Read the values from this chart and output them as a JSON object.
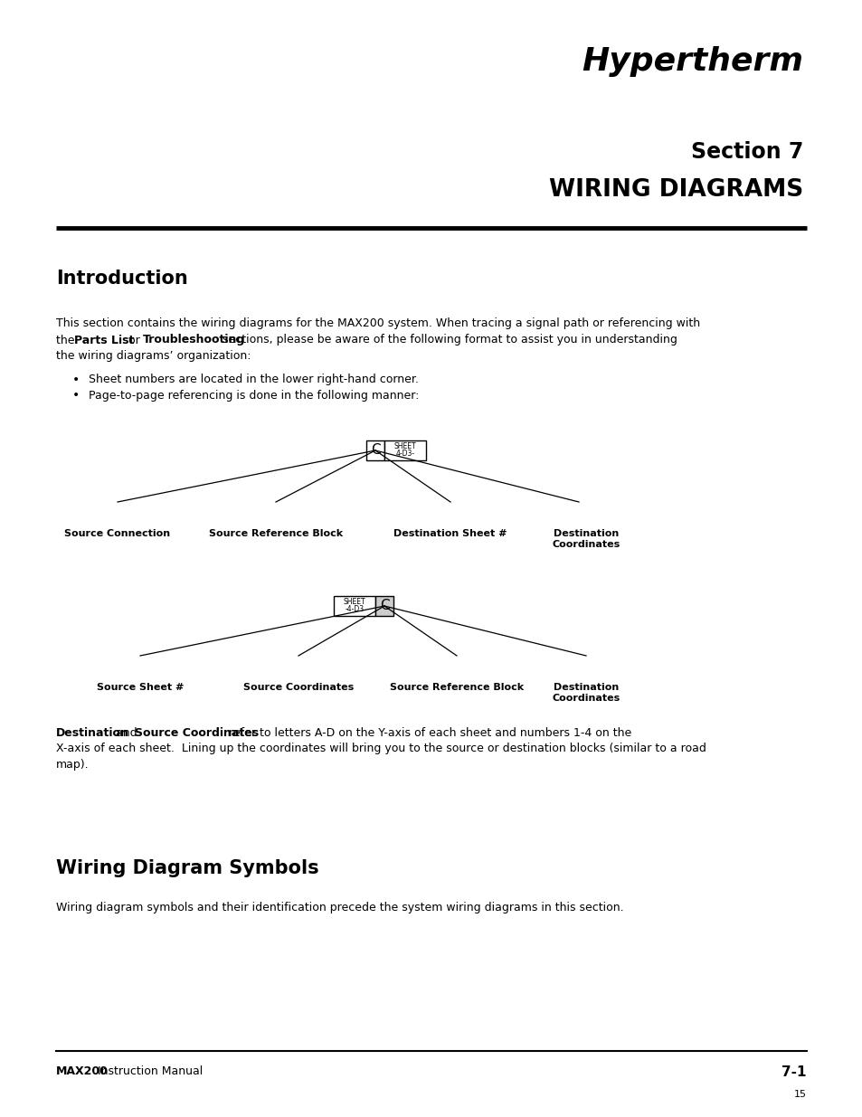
{
  "bg_color": "#ffffff",
  "logo_text": "Hypertherm",
  "section_label": "Section 7",
  "section_title": "WIRING DIAGRAMS",
  "intro_heading": "Introduction",
  "intro_body1": "This section contains the wiring diagrams for the MAX200 system. When tracing a signal path or referencing with",
  "intro_body2a": "the ",
  "intro_body2b": "Parts List",
  "intro_body2c": " or ",
  "intro_body2d": "Troubleshooting",
  "intro_body2e": " sections, please be aware of the following format to assist you in understanding",
  "intro_body3": "the wiring diagrams’ organization:",
  "bullet1": "Sheet numbers are located in the lower right-hand corner.",
  "bullet2": "Page-to-page referencing is done in the following manner:",
  "diag1_labels": [
    "Source Connection",
    "Source Reference Block",
    "Destination Sheet #",
    "Destination\nCoordinates"
  ],
  "diag2_labels": [
    "Source Sheet #",
    "Source Coordinates",
    "Source Reference Block",
    "Destination\nCoordinates"
  ],
  "dest_para_p1": "Destination",
  "dest_para_p2": " and ",
  "dest_para_p3": "Source Coordinates",
  "dest_para_p4": " refer to letters A-D on the Y-axis of each sheet and numbers 1-4 on the",
  "dest_para2": "X-axis of each sheet.  Lining up the coordinates will bring you to the source or destination blocks (similar to a road",
  "dest_para3": "map).",
  "wiring_heading": "Wiring Diagram Symbols",
  "wiring_body": "Wiring diagram symbols and their identification precede the system wiring diagrams in this section.",
  "footer_left_bold": "MAX200",
  "footer_left_normal": " Instruction Manual",
  "footer_right": "7-1",
  "footer_page": "15"
}
